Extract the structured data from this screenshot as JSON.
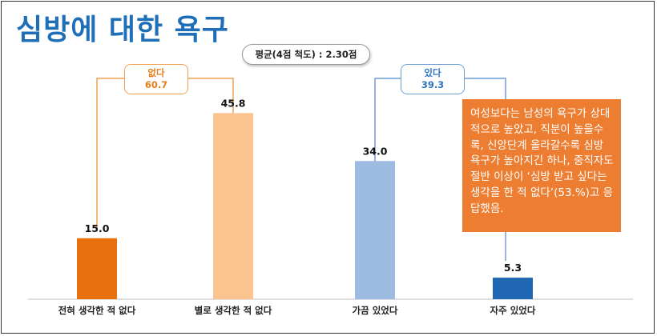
{
  "title": "심방에 대한 욕구",
  "average_note": "평균(4점 척도) : 2.30점",
  "groups": [
    {
      "label": "없다",
      "value": "60.7",
      "color": "#e87c18"
    },
    {
      "label": "있다",
      "value": "39.3",
      "color": "#2e74c0"
    }
  ],
  "callout": "여성보다는 남성의 욕구가 상대적으로 높았고, 직분이 높을수록, 신앙단계 올라갈수록 심방 욕구가 높아지긴 하나, 중직자도 절반 이상이 ‘심방 받고 싶다는 생각을 한 적 없다’(53.%)고 응답했음.",
  "chart_data": {
    "type": "bar",
    "title": "심방에 대한 욕구",
    "categories": [
      "전혀 생각한 적 없다",
      "별로 생각한 적 없다",
      "가끔 있었다",
      "자주 있었다"
    ],
    "values": [
      15.0,
      45.8,
      34.0,
      5.3
    ],
    "value_labels": [
      "15.0",
      "45.8",
      "34.0",
      "5.3"
    ],
    "colors": [
      "#e8700f",
      "#fbc48f",
      "#9dbae0",
      "#1f66b3"
    ],
    "ylim": [
      0,
      50
    ],
    "xlabel": "",
    "ylabel": "",
    "grid": false
  }
}
